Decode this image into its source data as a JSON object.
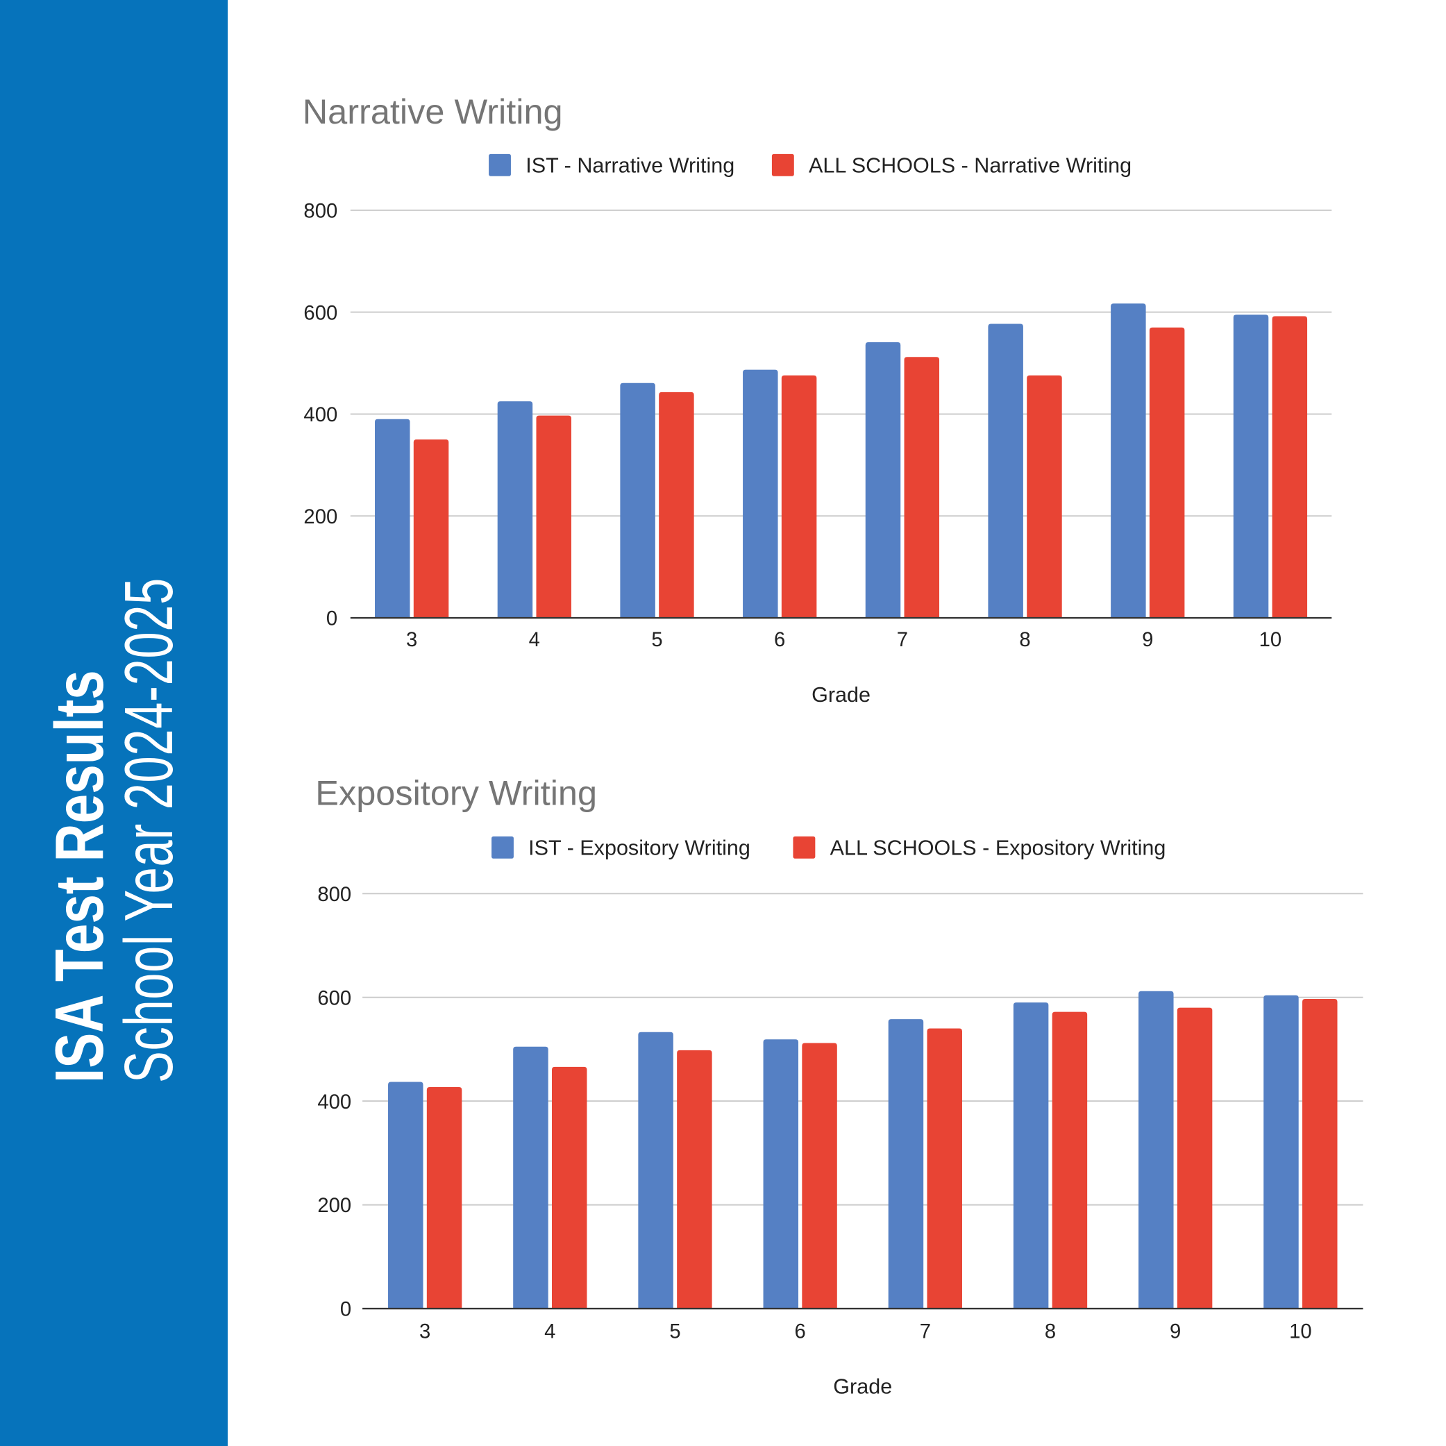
{
  "sidebar": {
    "title": "ISA Test Results",
    "subtitle": "School Year 2024-2025",
    "color": "#0673BB"
  },
  "colors": {
    "ist": "#5580C4",
    "all": "#E84434"
  },
  "chart_data": [
    {
      "type": "bar",
      "title": "Narrative Writing",
      "xlabel": "Grade",
      "ylabel": "",
      "ylim": [
        0,
        800
      ],
      "yticks": [
        0,
        200,
        400,
        600,
        800
      ],
      "grid": true,
      "legend": "top",
      "categories": [
        "3",
        "4",
        "5",
        "6",
        "7",
        "8",
        "9",
        "10"
      ],
      "series": [
        {
          "name": "IST - Narrative Writing",
          "color": "#5580C4",
          "values": [
            390,
            425,
            461,
            487,
            541,
            577,
            617,
            595
          ]
        },
        {
          "name": "ALL SCHOOLS - Narrative Writing",
          "color": "#E84434",
          "values": [
            350,
            397,
            443,
            476,
            512,
            476,
            570,
            592
          ]
        }
      ]
    },
    {
      "type": "bar",
      "title": "Expository Writing",
      "xlabel": "Grade",
      "ylabel": "",
      "ylim": [
        0,
        800
      ],
      "yticks": [
        0,
        200,
        400,
        600,
        800
      ],
      "grid": true,
      "legend": "top",
      "categories": [
        "3",
        "4",
        "5",
        "6",
        "7",
        "8",
        "9",
        "10"
      ],
      "series": [
        {
          "name": "IST - Expository Writing",
          "color": "#5580C4",
          "values": [
            437,
            505,
            533,
            519,
            558,
            590,
            612,
            604
          ]
        },
        {
          "name": "ALL SCHOOLS - Expository Writing",
          "color": "#E84434",
          "values": [
            427,
            466,
            498,
            512,
            540,
            572,
            580,
            597
          ]
        }
      ]
    }
  ]
}
